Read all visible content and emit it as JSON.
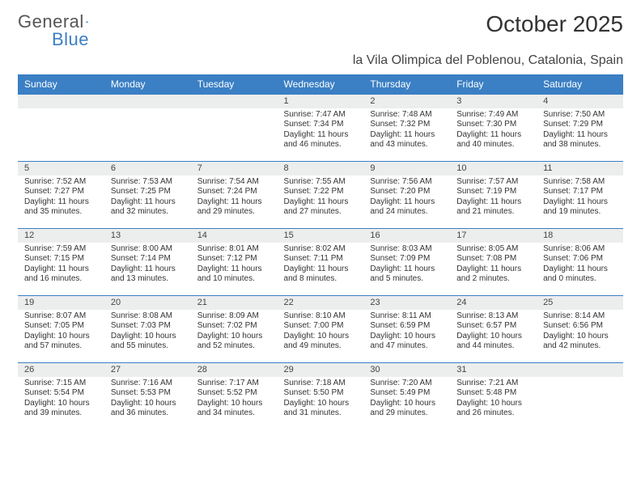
{
  "brand": {
    "name1": "General",
    "name2": "Blue"
  },
  "title": "October 2025",
  "subtitle": "la Vila Olimpica del Poblenou, Catalonia, Spain",
  "colors": {
    "header_bg": "#3b7fc4",
    "header_fg": "#ffffff",
    "daynum_bg": "#eceded",
    "daynum_border": "#3b7fc4",
    "body_bg": "#ffffff",
    "text": "#333333"
  },
  "weekdays": [
    "Sunday",
    "Monday",
    "Tuesday",
    "Wednesday",
    "Thursday",
    "Friday",
    "Saturday"
  ],
  "weeks": [
    [
      null,
      null,
      null,
      {
        "n": "1",
        "sr": "Sunrise: 7:47 AM",
        "ss": "Sunset: 7:34 PM",
        "d1": "Daylight: 11 hours",
        "d2": "and 46 minutes."
      },
      {
        "n": "2",
        "sr": "Sunrise: 7:48 AM",
        "ss": "Sunset: 7:32 PM",
        "d1": "Daylight: 11 hours",
        "d2": "and 43 minutes."
      },
      {
        "n": "3",
        "sr": "Sunrise: 7:49 AM",
        "ss": "Sunset: 7:30 PM",
        "d1": "Daylight: 11 hours",
        "d2": "and 40 minutes."
      },
      {
        "n": "4",
        "sr": "Sunrise: 7:50 AM",
        "ss": "Sunset: 7:29 PM",
        "d1": "Daylight: 11 hours",
        "d2": "and 38 minutes."
      }
    ],
    [
      {
        "n": "5",
        "sr": "Sunrise: 7:52 AM",
        "ss": "Sunset: 7:27 PM",
        "d1": "Daylight: 11 hours",
        "d2": "and 35 minutes."
      },
      {
        "n": "6",
        "sr": "Sunrise: 7:53 AM",
        "ss": "Sunset: 7:25 PM",
        "d1": "Daylight: 11 hours",
        "d2": "and 32 minutes."
      },
      {
        "n": "7",
        "sr": "Sunrise: 7:54 AM",
        "ss": "Sunset: 7:24 PM",
        "d1": "Daylight: 11 hours",
        "d2": "and 29 minutes."
      },
      {
        "n": "8",
        "sr": "Sunrise: 7:55 AM",
        "ss": "Sunset: 7:22 PM",
        "d1": "Daylight: 11 hours",
        "d2": "and 27 minutes."
      },
      {
        "n": "9",
        "sr": "Sunrise: 7:56 AM",
        "ss": "Sunset: 7:20 PM",
        "d1": "Daylight: 11 hours",
        "d2": "and 24 minutes."
      },
      {
        "n": "10",
        "sr": "Sunrise: 7:57 AM",
        "ss": "Sunset: 7:19 PM",
        "d1": "Daylight: 11 hours",
        "d2": "and 21 minutes."
      },
      {
        "n": "11",
        "sr": "Sunrise: 7:58 AM",
        "ss": "Sunset: 7:17 PM",
        "d1": "Daylight: 11 hours",
        "d2": "and 19 minutes."
      }
    ],
    [
      {
        "n": "12",
        "sr": "Sunrise: 7:59 AM",
        "ss": "Sunset: 7:15 PM",
        "d1": "Daylight: 11 hours",
        "d2": "and 16 minutes."
      },
      {
        "n": "13",
        "sr": "Sunrise: 8:00 AM",
        "ss": "Sunset: 7:14 PM",
        "d1": "Daylight: 11 hours",
        "d2": "and 13 minutes."
      },
      {
        "n": "14",
        "sr": "Sunrise: 8:01 AM",
        "ss": "Sunset: 7:12 PM",
        "d1": "Daylight: 11 hours",
        "d2": "and 10 minutes."
      },
      {
        "n": "15",
        "sr": "Sunrise: 8:02 AM",
        "ss": "Sunset: 7:11 PM",
        "d1": "Daylight: 11 hours",
        "d2": "and 8 minutes."
      },
      {
        "n": "16",
        "sr": "Sunrise: 8:03 AM",
        "ss": "Sunset: 7:09 PM",
        "d1": "Daylight: 11 hours",
        "d2": "and 5 minutes."
      },
      {
        "n": "17",
        "sr": "Sunrise: 8:05 AM",
        "ss": "Sunset: 7:08 PM",
        "d1": "Daylight: 11 hours",
        "d2": "and 2 minutes."
      },
      {
        "n": "18",
        "sr": "Sunrise: 8:06 AM",
        "ss": "Sunset: 7:06 PM",
        "d1": "Daylight: 11 hours",
        "d2": "and 0 minutes."
      }
    ],
    [
      {
        "n": "19",
        "sr": "Sunrise: 8:07 AM",
        "ss": "Sunset: 7:05 PM",
        "d1": "Daylight: 10 hours",
        "d2": "and 57 minutes."
      },
      {
        "n": "20",
        "sr": "Sunrise: 8:08 AM",
        "ss": "Sunset: 7:03 PM",
        "d1": "Daylight: 10 hours",
        "d2": "and 55 minutes."
      },
      {
        "n": "21",
        "sr": "Sunrise: 8:09 AM",
        "ss": "Sunset: 7:02 PM",
        "d1": "Daylight: 10 hours",
        "d2": "and 52 minutes."
      },
      {
        "n": "22",
        "sr": "Sunrise: 8:10 AM",
        "ss": "Sunset: 7:00 PM",
        "d1": "Daylight: 10 hours",
        "d2": "and 49 minutes."
      },
      {
        "n": "23",
        "sr": "Sunrise: 8:11 AM",
        "ss": "Sunset: 6:59 PM",
        "d1": "Daylight: 10 hours",
        "d2": "and 47 minutes."
      },
      {
        "n": "24",
        "sr": "Sunrise: 8:13 AM",
        "ss": "Sunset: 6:57 PM",
        "d1": "Daylight: 10 hours",
        "d2": "and 44 minutes."
      },
      {
        "n": "25",
        "sr": "Sunrise: 8:14 AM",
        "ss": "Sunset: 6:56 PM",
        "d1": "Daylight: 10 hours",
        "d2": "and 42 minutes."
      }
    ],
    [
      {
        "n": "26",
        "sr": "Sunrise: 7:15 AM",
        "ss": "Sunset: 5:54 PM",
        "d1": "Daylight: 10 hours",
        "d2": "and 39 minutes."
      },
      {
        "n": "27",
        "sr": "Sunrise: 7:16 AM",
        "ss": "Sunset: 5:53 PM",
        "d1": "Daylight: 10 hours",
        "d2": "and 36 minutes."
      },
      {
        "n": "28",
        "sr": "Sunrise: 7:17 AM",
        "ss": "Sunset: 5:52 PM",
        "d1": "Daylight: 10 hours",
        "d2": "and 34 minutes."
      },
      {
        "n": "29",
        "sr": "Sunrise: 7:18 AM",
        "ss": "Sunset: 5:50 PM",
        "d1": "Daylight: 10 hours",
        "d2": "and 31 minutes."
      },
      {
        "n": "30",
        "sr": "Sunrise: 7:20 AM",
        "ss": "Sunset: 5:49 PM",
        "d1": "Daylight: 10 hours",
        "d2": "and 29 minutes."
      },
      {
        "n": "31",
        "sr": "Sunrise: 7:21 AM",
        "ss": "Sunset: 5:48 PM",
        "d1": "Daylight: 10 hours",
        "d2": "and 26 minutes."
      },
      null
    ]
  ]
}
